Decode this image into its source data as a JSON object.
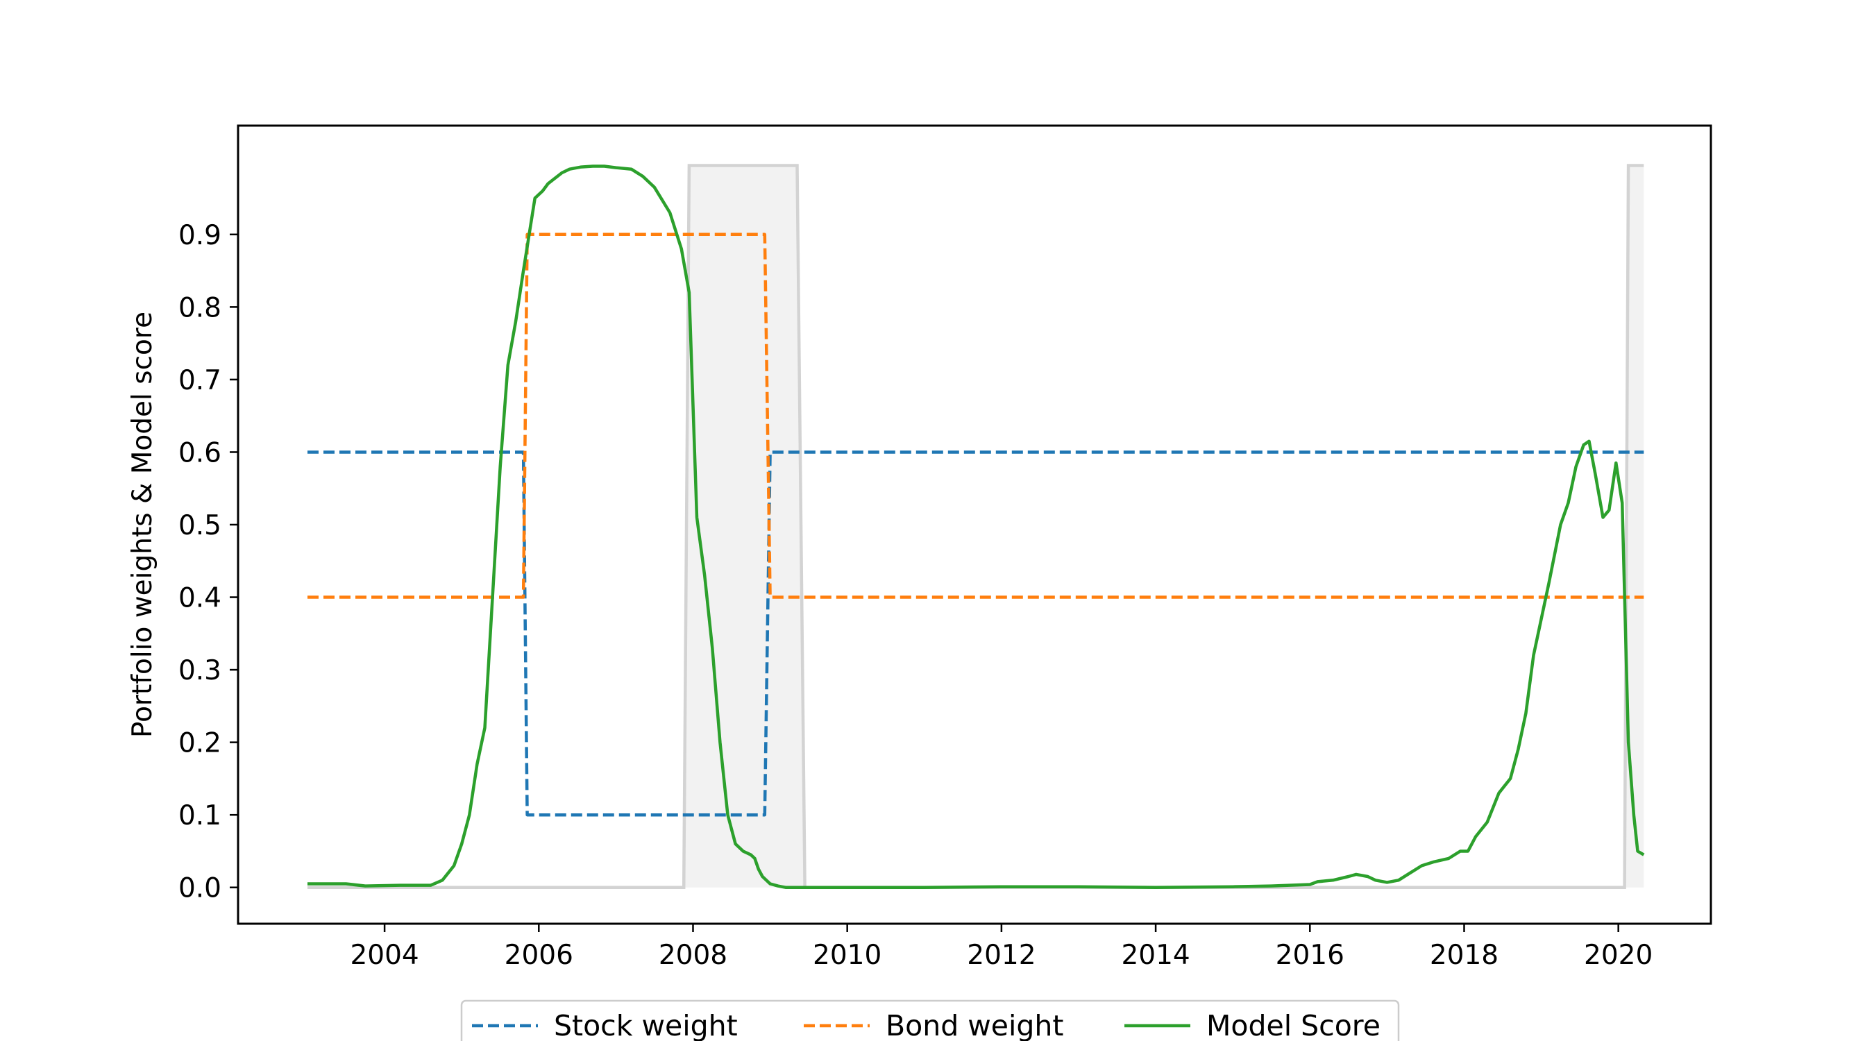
{
  "chart_data": {
    "type": "line",
    "title": "",
    "xlabel": "",
    "ylabel": "Portfolio weights & Model score",
    "xlim": [
      2002.1,
      2021.2
    ],
    "ylim": [
      -0.05,
      1.05
    ],
    "x_ticks": [
      2004,
      2006,
      2008,
      2010,
      2012,
      2014,
      2016,
      2018,
      2020
    ],
    "x_tick_labels": [
      "2004",
      "2006",
      "2008",
      "2010",
      "2012",
      "2014",
      "2016",
      "2018",
      "2020"
    ],
    "y_ticks": [
      0.0,
      0.1,
      0.2,
      0.3,
      0.4,
      0.5,
      0.6,
      0.7,
      0.8,
      0.9
    ],
    "y_tick_labels": [
      "0.0",
      "0.1",
      "0.2",
      "0.3",
      "0.4",
      "0.5",
      "0.6",
      "0.7",
      "0.8",
      "0.9"
    ],
    "grid": false,
    "legend_position": "bottom-center-outside",
    "shaded_regions": {
      "color": "#d3d3d3",
      "fill": "#f2f2f2",
      "x": [
        2003.0,
        2007.88,
        2007.95,
        2009.35,
        2009.45,
        2020.08,
        2020.13,
        2020.33
      ],
      "y": [
        0.0,
        0.0,
        0.995,
        0.995,
        0.0,
        0.0,
        0.995,
        0.995
      ]
    },
    "series": [
      {
        "name": "Stock weight",
        "color": "#1f77b4",
        "style": "dashed",
        "x": [
          2003.0,
          2005.8,
          2005.85,
          2008.93,
          2009.0,
          2020.33
        ],
        "y": [
          0.6,
          0.6,
          0.1,
          0.1,
          0.6,
          0.6
        ]
      },
      {
        "name": "Bond weight",
        "color": "#ff7f0e",
        "style": "dashed",
        "x": [
          2003.0,
          2005.8,
          2005.85,
          2008.93,
          2009.0,
          2020.33
        ],
        "y": [
          0.4,
          0.4,
          0.9,
          0.9,
          0.4,
          0.4
        ]
      },
      {
        "name": "Model Score",
        "color": "#2ca02c",
        "style": "solid",
        "x": [
          2003.0,
          2003.5,
          2003.75,
          2004.2,
          2004.6,
          2004.75,
          2004.9,
          2005.0,
          2005.1,
          2005.2,
          2005.3,
          2005.4,
          2005.5,
          2005.6,
          2005.7,
          2005.8,
          2005.95,
          2006.05,
          2006.12,
          2006.3,
          2006.4,
          2006.55,
          2006.7,
          2006.85,
          2007.0,
          2007.2,
          2007.35,
          2007.5,
          2007.7,
          2007.85,
          2007.95,
          2008.05,
          2008.15,
          2008.25,
          2008.35,
          2008.45,
          2008.55,
          2008.65,
          2008.75,
          2008.8,
          2008.85,
          2008.9,
          2009.0,
          2009.1,
          2009.15,
          2009.2,
          2009.35,
          2009.45,
          2010.0,
          2011.0,
          2012.0,
          2013.0,
          2014.0,
          2015.0,
          2015.5,
          2016.0,
          2016.1,
          2016.3,
          2016.5,
          2016.6,
          2016.75,
          2016.85,
          2017.0,
          2017.15,
          2017.3,
          2017.45,
          2017.6,
          2017.8,
          2017.95,
          2018.05,
          2018.15,
          2018.3,
          2018.45,
          2018.6,
          2018.7,
          2018.8,
          2018.9,
          2019.0,
          2019.1,
          2019.25,
          2019.35,
          2019.45,
          2019.55,
          2019.62,
          2019.7,
          2019.8,
          2019.88,
          2019.97,
          2020.05,
          2020.13,
          2020.2,
          2020.25,
          2020.33
        ],
        "y": [
          0.005,
          0.005,
          0.002,
          0.003,
          0.003,
          0.01,
          0.03,
          0.06,
          0.1,
          0.17,
          0.22,
          0.4,
          0.58,
          0.72,
          0.78,
          0.85,
          0.95,
          0.96,
          0.97,
          0.985,
          0.99,
          0.993,
          0.994,
          0.994,
          0.992,
          0.99,
          0.98,
          0.965,
          0.93,
          0.88,
          0.82,
          0.51,
          0.43,
          0.33,
          0.2,
          0.1,
          0.06,
          0.05,
          0.045,
          0.04,
          0.025,
          0.015,
          0.005,
          0.002,
          0.001,
          0.0,
          0.0,
          0.0,
          0.0,
          0.0,
          0.001,
          0.001,
          0.0,
          0.001,
          0.002,
          0.004,
          0.008,
          0.01,
          0.015,
          0.018,
          0.015,
          0.01,
          0.007,
          0.01,
          0.02,
          0.03,
          0.035,
          0.04,
          0.05,
          0.05,
          0.07,
          0.09,
          0.13,
          0.15,
          0.19,
          0.24,
          0.32,
          0.37,
          0.42,
          0.5,
          0.53,
          0.58,
          0.61,
          0.615,
          0.57,
          0.51,
          0.52,
          0.585,
          0.53,
          0.2,
          0.1,
          0.05,
          0.045
        ]
      }
    ]
  }
}
